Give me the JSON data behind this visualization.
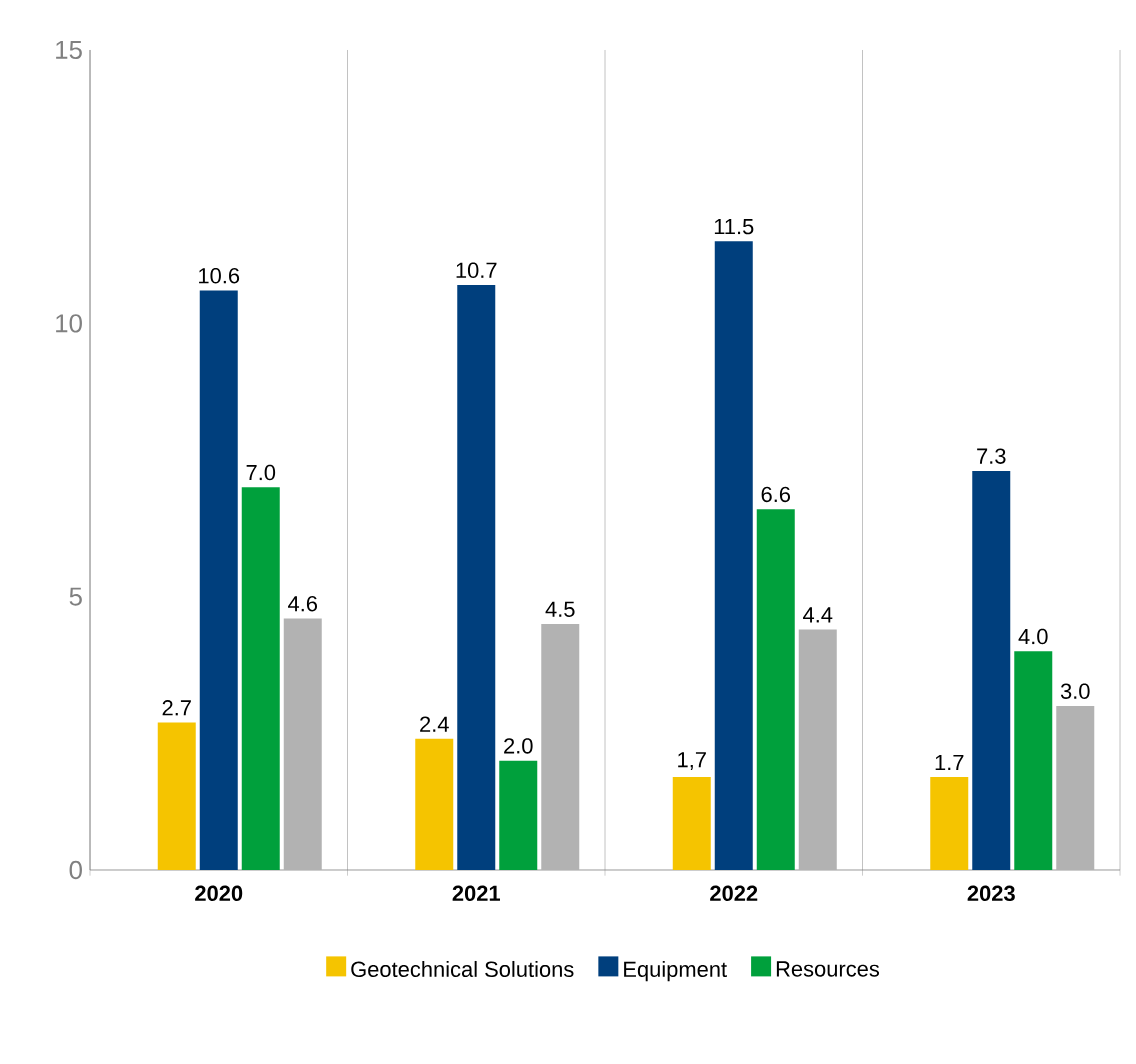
{
  "chart_data": {
    "type": "bar",
    "categories": [
      "2020",
      "2021",
      "2022",
      "2023"
    ],
    "series": [
      {
        "name": "Geotechnical Solutions",
        "color": "#f5c400",
        "values": [
          2.7,
          2.4,
          1.7,
          1.7
        ],
        "value_labels": [
          "2.7",
          "2.4",
          "1,7",
          "1.7"
        ]
      },
      {
        "name": "Equipment",
        "color": "#003f7d",
        "values": [
          10.6,
          10.7,
          11.5,
          7.3
        ],
        "value_labels": [
          "10.6",
          "10.7",
          "11.5",
          "7.3"
        ]
      },
      {
        "name": "Resources",
        "color": "#00a03c",
        "values": [
          7.0,
          2.0,
          6.6,
          4.0
        ],
        "value_labels": [
          "7.0",
          "2.0",
          "6.6",
          "4.0"
        ]
      },
      {
        "color": "#b2b2b2",
        "values": [
          4.6,
          4.5,
          4.4,
          3.0
        ],
        "value_labels": [
          "4.6",
          "4.5",
          "4.4",
          "3.0"
        ]
      }
    ],
    "ylim": [
      0,
      15
    ],
    "yticks": [
      0,
      5,
      10,
      15
    ],
    "grid": "x",
    "legend": "bottom"
  }
}
